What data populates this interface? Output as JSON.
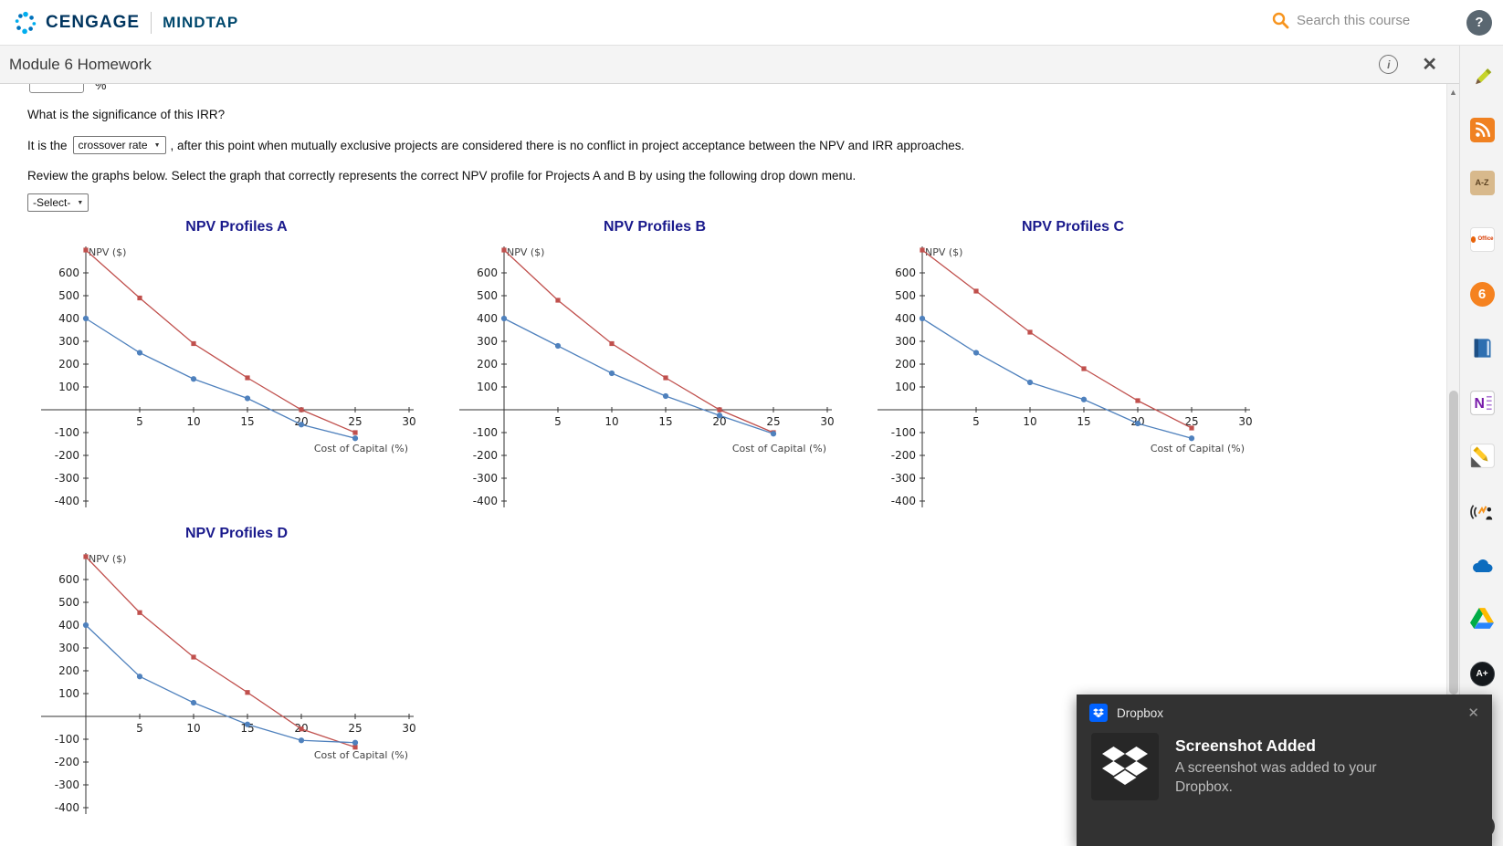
{
  "icons": {
    "help": "?",
    "close": "✕",
    "info": "i",
    "caret_down": "▼",
    "scroll_up": "▲",
    "toast_close": "✕"
  },
  "header": {
    "brand_primary": "CENGAGE",
    "brand_secondary": "MINDTAP",
    "search_placeholder": "Search this course"
  },
  "module_bar": {
    "title": "Module 6 Homework"
  },
  "content": {
    "percent_suffix": "%",
    "question1": "What is the significance of this IRR?",
    "sentence_prefix": "It is the",
    "crossover_select_value": "crossover rate",
    "sentence_suffix": ", after this point when mutually exclusive projects are considered there is no conflict in project acceptance between the NPV and IRR approaches.",
    "review_text": "Review the graphs below. Select the graph that correctly represents the correct NPV profile for Projects A and B by using the following drop down menu.",
    "graph_select_value": "-Select-"
  },
  "chart_data": [
    {
      "type": "line",
      "title": "NPV Profiles A",
      "xlabel": "Cost of Capital (%)",
      "ylabel": "NPV ($)",
      "x": [
        0,
        5,
        10,
        15,
        20,
        25
      ],
      "xticks": [
        5,
        10,
        15,
        20,
        25,
        30
      ],
      "yticks": [
        600,
        500,
        400,
        300,
        200,
        100,
        -100,
        -200,
        -300,
        -400
      ],
      "xlim": [
        -4,
        31
      ],
      "ylim": [
        -450,
        720
      ],
      "grid": false,
      "legend": "none",
      "series": [
        {
          "name": "red-series",
          "color": "#c0504d",
          "marker": "square",
          "values": [
            700,
            490,
            290,
            140,
            0,
            -100
          ]
        },
        {
          "name": "blue-series",
          "color": "#4f81bd",
          "marker": "circle",
          "values": [
            400,
            250,
            135,
            50,
            -65,
            -125
          ]
        }
      ]
    },
    {
      "type": "line",
      "title": "NPV Profiles B",
      "xlabel": "Cost of Capital (%)",
      "ylabel": "NPV ($)",
      "x": [
        0,
        5,
        10,
        15,
        20,
        25
      ],
      "xticks": [
        5,
        10,
        15,
        20,
        25,
        30
      ],
      "yticks": [
        600,
        500,
        400,
        300,
        200,
        100,
        -100,
        -200,
        -300,
        -400
      ],
      "xlim": [
        -4,
        31
      ],
      "ylim": [
        -450,
        720
      ],
      "grid": false,
      "legend": "none",
      "series": [
        {
          "name": "red-series",
          "color": "#c0504d",
          "marker": "square",
          "values": [
            700,
            480,
            290,
            140,
            0,
            -100
          ]
        },
        {
          "name": "blue-series",
          "color": "#4f81bd",
          "marker": "circle",
          "values": [
            400,
            280,
            160,
            60,
            -25,
            -105
          ]
        }
      ]
    },
    {
      "type": "line",
      "title": "NPV Profiles C",
      "xlabel": "Cost of Capital (%)",
      "ylabel": "NPV ($)",
      "x": [
        0,
        5,
        10,
        15,
        20,
        25
      ],
      "xticks": [
        5,
        10,
        15,
        20,
        25,
        30
      ],
      "yticks": [
        600,
        500,
        400,
        300,
        200,
        100,
        -100,
        -200,
        -300,
        -400
      ],
      "xlim": [
        -4,
        31
      ],
      "ylim": [
        -450,
        720
      ],
      "grid": false,
      "legend": "none",
      "series": [
        {
          "name": "red-series",
          "color": "#c0504d",
          "marker": "square",
          "values": [
            700,
            520,
            340,
            180,
            40,
            -80
          ]
        },
        {
          "name": "blue-series",
          "color": "#4f81bd",
          "marker": "circle",
          "values": [
            400,
            250,
            120,
            45,
            -60,
            -125
          ]
        }
      ]
    },
    {
      "type": "line",
      "title": "NPV Profiles D",
      "xlabel": "Cost of Capital (%)",
      "ylabel": "NPV ($)",
      "x": [
        0,
        5,
        10,
        15,
        20,
        25
      ],
      "xticks": [
        5,
        10,
        15,
        20,
        25,
        30
      ],
      "yticks": [
        600,
        500,
        400,
        300,
        200,
        100,
        -100,
        -200,
        -300,
        -400
      ],
      "xlim": [
        -4,
        31
      ],
      "ylim": [
        -450,
        720
      ],
      "grid": false,
      "legend": "none",
      "series": [
        {
          "name": "red-series",
          "color": "#c0504d",
          "marker": "square",
          "values": [
            700,
            455,
            260,
            105,
            -55,
            -135
          ]
        },
        {
          "name": "blue-series",
          "color": "#4f81bd",
          "marker": "circle",
          "values": [
            400,
            175,
            60,
            -35,
            -105,
            -115
          ]
        }
      ]
    }
  ],
  "sidebar": {
    "icons": [
      {
        "name": "annotate-pencil-icon",
        "label": ""
      },
      {
        "name": "rss-icon",
        "label": ""
      },
      {
        "name": "dictionary-icon",
        "label": "A-Z"
      },
      {
        "name": "office-icon",
        "label": "Office"
      },
      {
        "name": "bongo-icon",
        "label": "6"
      },
      {
        "name": "ebook-icon",
        "label": ""
      },
      {
        "name": "onenote-icon",
        "label": "N"
      },
      {
        "name": "highlighter-icon",
        "label": ""
      },
      {
        "name": "readspeaker-icon",
        "label": ""
      },
      {
        "name": "onedrive-icon",
        "label": ""
      },
      {
        "name": "google-drive-icon",
        "label": ""
      },
      {
        "name": "grades-icon",
        "label": "A+"
      },
      {
        "name": "partial-icon",
        "label": ""
      }
    ]
  },
  "toast": {
    "app_name": "Dropbox",
    "title": "Screenshot Added",
    "message": "A screenshot was added to your Dropbox."
  }
}
